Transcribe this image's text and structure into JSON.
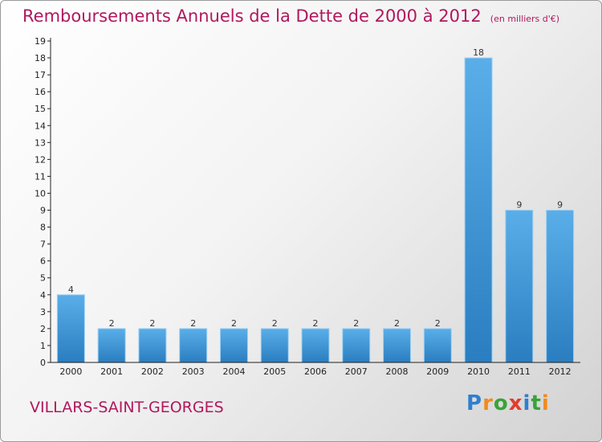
{
  "title": "Remboursements Annuels de la Dette de 2000 à 2012",
  "subtitle": "(en milliers d'€)",
  "commune": "VILLARS-SAINT-GEORGES",
  "logo": {
    "letters": [
      "P",
      "r",
      "o",
      "x",
      "i",
      "t",
      "i"
    ],
    "colors": [
      "#2e7fcf",
      "#f28a1d",
      "#3aa23a",
      "#e23c2f",
      "#2e7fcf",
      "#3aa23a",
      "#f28a1d"
    ]
  },
  "colors": {
    "bar_light": "#5aaee8",
    "bar_dark": "#2a7ec0",
    "title": "#b0185e"
  },
  "chart_data": {
    "type": "bar",
    "title": "Remboursements Annuels de la Dette de 2000 à 2012",
    "subtitle": "(en milliers d'€)",
    "categories": [
      "2000",
      "2001",
      "2002",
      "2003",
      "2004",
      "2005",
      "2006",
      "2007",
      "2008",
      "2009",
      "2010",
      "2011",
      "2012"
    ],
    "values": [
      4,
      2,
      2,
      2,
      2,
      2,
      2,
      2,
      2,
      2,
      18,
      9,
      9
    ],
    "ylim": [
      0,
      19
    ],
    "yticks": [
      "0",
      "1",
      "2",
      "3",
      "4",
      "5",
      "6",
      "7",
      "8",
      "9",
      "10",
      "11",
      "12",
      "13",
      "14",
      "15",
      "16",
      "17",
      "18",
      "19"
    ],
    "grid": false,
    "data_labels": true
  }
}
